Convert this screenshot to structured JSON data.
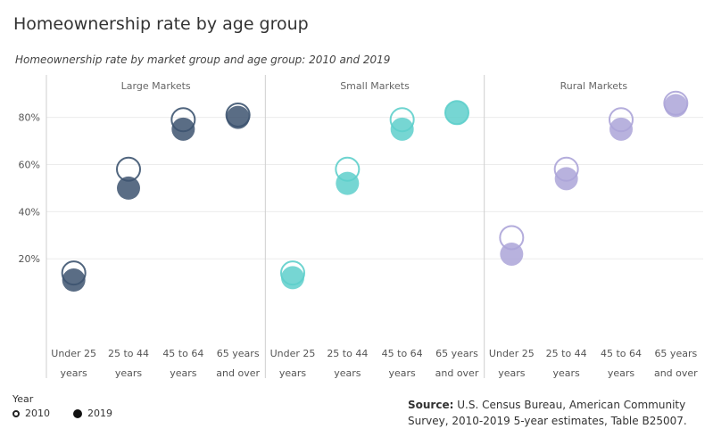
{
  "title": "Homeownership rate by age group",
  "chart_data": {
    "type": "scatter",
    "title": "Homeownership rate by market group and age group: 2010 and 2019",
    "ylim": [
      -0.2,
      0.98
    ],
    "y_ticks": [
      0.2,
      0.4,
      0.6,
      0.8
    ],
    "y_tick_labels": [
      "20%",
      "40%",
      "60%",
      "80%"
    ],
    "categories": [
      [
        "Under 25",
        "years"
      ],
      [
        "25 to 44",
        "years"
      ],
      [
        "45 to 64",
        "years"
      ],
      [
        "65 years",
        "and over"
      ]
    ],
    "panels": [
      {
        "name": "Large Markets",
        "color": "#3d5470",
        "series": [
          {
            "name": "2010",
            "values": [
              0.14,
              0.58,
              0.79,
              0.81
            ]
          },
          {
            "name": "2019",
            "values": [
              0.11,
              0.5,
              0.75,
              0.8
            ]
          }
        ]
      },
      {
        "name": "Small Markets",
        "color": "#5ecfcb",
        "series": [
          {
            "name": "2010",
            "values": [
              0.14,
              0.58,
              0.79,
              0.82
            ]
          },
          {
            "name": "2019",
            "values": [
              0.12,
              0.52,
              0.75,
              0.82
            ]
          }
        ]
      },
      {
        "name": "Rural Markets",
        "color": "#aca4d8",
        "series": [
          {
            "name": "2010",
            "values": [
              0.29,
              0.58,
              0.79,
              0.86
            ]
          },
          {
            "name": "2019",
            "values": [
              0.22,
              0.54,
              0.75,
              0.85
            ]
          }
        ]
      }
    ],
    "grid": true,
    "legend": {
      "title": "Year",
      "position": "bottom-left",
      "items": [
        {
          "label": "2010",
          "style": "hollow"
        },
        {
          "label": "2019",
          "style": "filled"
        }
      ]
    }
  },
  "source": {
    "label": "Source:",
    "text": "U.S. Census Bureau, American Community Survey, 2010-2019 5-year estimates, Table B25007."
  }
}
